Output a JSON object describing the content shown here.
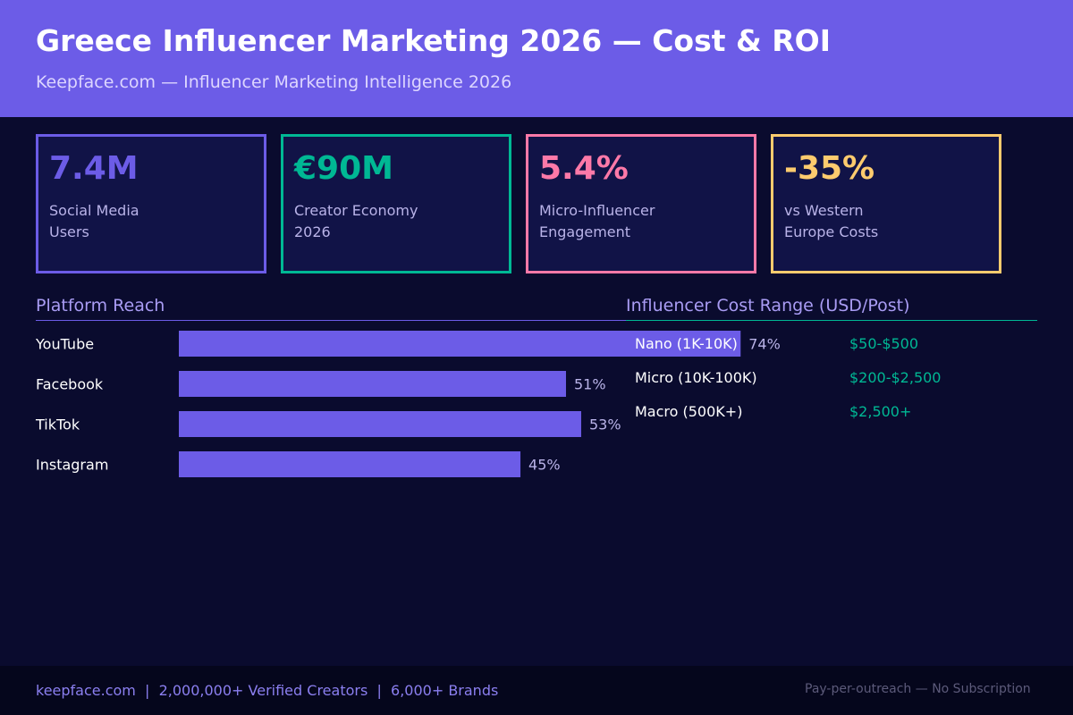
{
  "header": {
    "title": "Greece Influencer Marketing 2026 — Cost & ROI",
    "subtitle": "Keepface.com — Influencer Marketing Intelligence 2026"
  },
  "stats": [
    {
      "value": "7.4M",
      "label": "Social Media Users",
      "color": "#6c5ce7"
    },
    {
      "value": "€90M",
      "label": "Creator Economy 2026",
      "color": "#00b894"
    },
    {
      "value": "5.4%",
      "label": "Micro-Influencer Engagement",
      "color": "#fd79a8"
    },
    {
      "value": "-35%",
      "label": "vs Western Europe Costs",
      "color": "#fdcb6e"
    }
  ],
  "reach_section": {
    "title": "Platform Reach"
  },
  "cost_section": {
    "title": "Influencer Cost Range (USD/Post)",
    "rows": [
      {
        "tier": "Nano (1K-10K)",
        "range": "$50-$500"
      },
      {
        "tier": "Micro (10K-100K)",
        "range": "$200-$2,500"
      },
      {
        "tier": "Macro (500K+)",
        "range": "$2,500+"
      }
    ]
  },
  "chart_data": {
    "type": "bar",
    "orientation": "horizontal",
    "title": "Platform Reach",
    "categories": [
      "YouTube",
      "Facebook",
      "TikTok",
      "Instagram"
    ],
    "values": [
      74,
      51,
      53,
      45
    ],
    "value_labels": [
      "74%",
      "51%",
      "53%",
      "45%"
    ],
    "unit": "%",
    "xlim": [
      0,
      100
    ],
    "grid": false,
    "bar_color": "#6c5ce7"
  },
  "footer": {
    "left": "keepface.com  |  2,000,000+ Verified Creators  |  6,000+ Brands",
    "right": "Pay-per-outreach — No Subscription"
  },
  "colors": {
    "background": "#0a0b2e",
    "header_bg": "#6c5ce7",
    "card_bg": "#111347",
    "accent": "#6c5ce7",
    "teal": "#00b894"
  }
}
